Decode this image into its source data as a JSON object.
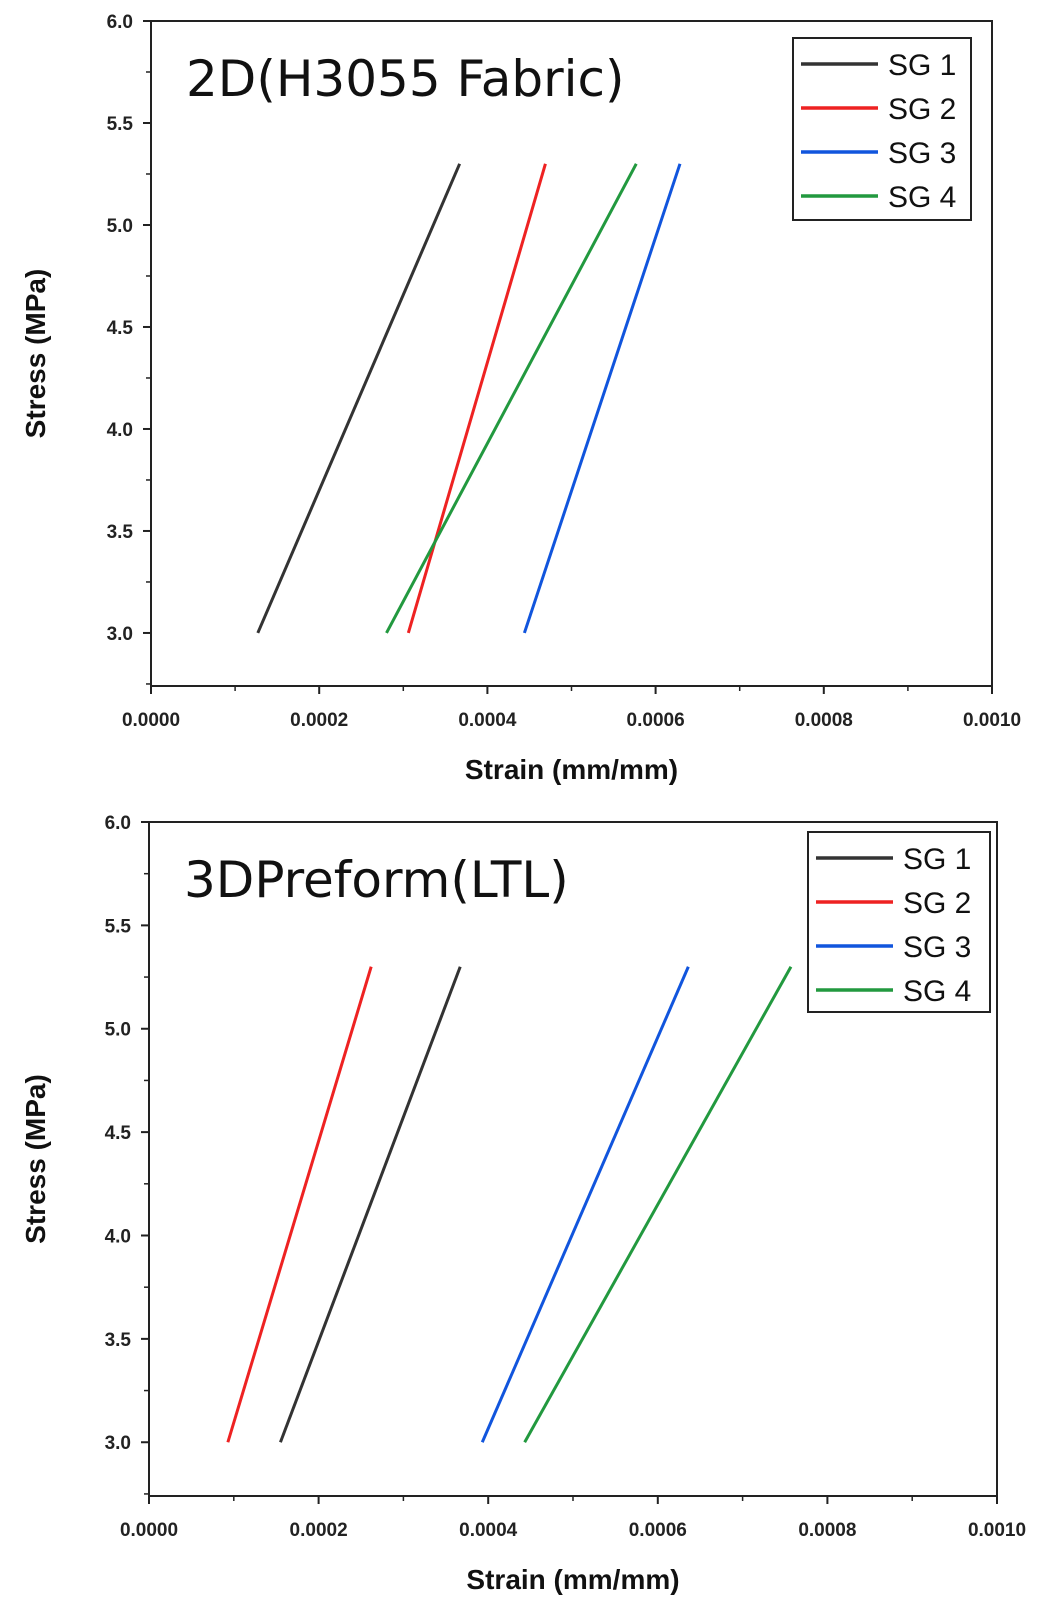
{
  "chart_data": [
    {
      "type": "line",
      "title": "2D(H3055 Fabric)",
      "xlabel": "Strain (mm/mm)",
      "ylabel": "Stress (MPa)",
      "xlim": [
        0,
        0.001
      ],
      "ylim": [
        2.74,
        6.0
      ],
      "xticks": [
        "0.0000",
        "0.0002",
        "0.0004",
        "0.0006",
        "0.0008",
        "0.0010"
      ],
      "yticks": [
        "3.0",
        "3.5",
        "4.0",
        "4.5",
        "5.0",
        "5.5",
        "6.0"
      ],
      "legend_position": "top-right",
      "series": [
        {
          "name": "SG 1",
          "color": "#333333",
          "x": [
            0.000127,
            0.000367
          ],
          "y": [
            3.0,
            5.3
          ]
        },
        {
          "name": "SG 2",
          "color": "#ee2222",
          "x": [
            0.000306,
            0.000469
          ],
          "y": [
            3.0,
            5.3
          ]
        },
        {
          "name": "SG 3",
          "color": "#1155dd",
          "x": [
            0.000444,
            0.000629
          ],
          "y": [
            3.0,
            5.3
          ]
        },
        {
          "name": "SG 4",
          "color": "#22993f",
          "x": [
            0.00028,
            0.000577
          ],
          "y": [
            3.0,
            5.3
          ]
        }
      ]
    },
    {
      "type": "line",
      "title": "3DPreform(LTL)",
      "xlabel": "Strain (mm/mm)",
      "ylabel": "Stress (MPa)",
      "xlim": [
        0,
        0.001
      ],
      "ylim": [
        2.74,
        6.0
      ],
      "xticks": [
        "0.0000",
        "0.0002",
        "0.0004",
        "0.0006",
        "0.0008",
        "0.0010"
      ],
      "yticks": [
        "3.0",
        "3.5",
        "4.0",
        "4.5",
        "5.0",
        "5.5",
        "6.0"
      ],
      "legend_position": "top-right",
      "series": [
        {
          "name": "SG 1",
          "color": "#333333",
          "x": [
            0.000155,
            0.000367
          ],
          "y": [
            3.0,
            5.3
          ]
        },
        {
          "name": "SG 2",
          "color": "#ee2222",
          "x": [
            9.3e-05,
            0.000262
          ],
          "y": [
            3.0,
            5.3
          ]
        },
        {
          "name": "SG 3",
          "color": "#1155dd",
          "x": [
            0.000393,
            0.000636
          ],
          "y": [
            3.0,
            5.3
          ]
        },
        {
          "name": "SG 4",
          "color": "#22993f",
          "x": [
            0.000443,
            0.000757
          ],
          "y": [
            3.0,
            5.3
          ]
        }
      ]
    }
  ]
}
